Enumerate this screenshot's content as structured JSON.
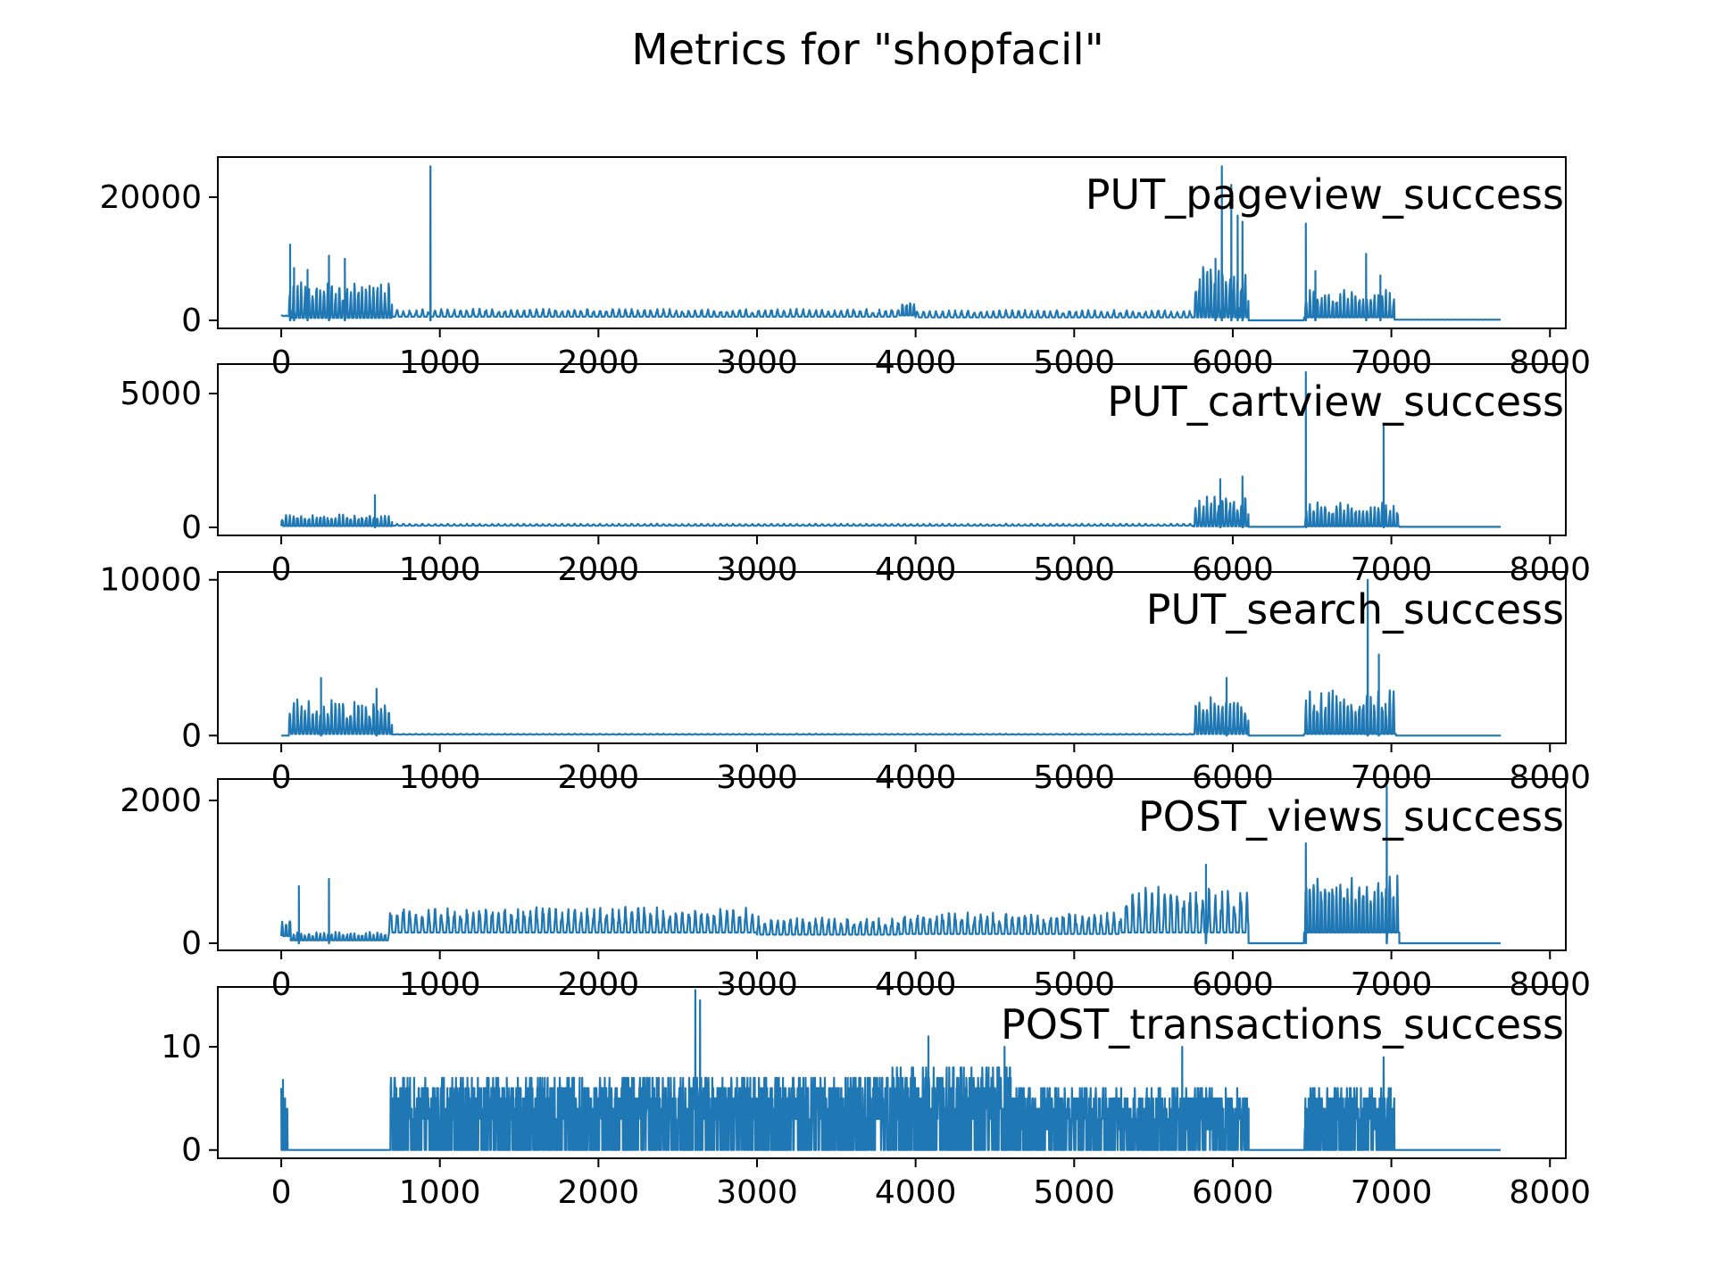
{
  "title": "Metrics for \"shopfacil\"",
  "line_color": "#1f77b4",
  "chart_data": [
    {
      "type": "line",
      "label": "PUT_pageview_success",
      "xlim": [
        -400,
        8100
      ],
      "ylim": [
        -1300,
        26500
      ],
      "xticks": [
        0,
        1000,
        2000,
        3000,
        4000,
        5000,
        6000,
        7000,
        8000
      ],
      "yticks": [
        0,
        20000
      ],
      "segments": [
        {
          "x0": 0,
          "x1": 50,
          "kind": "flat",
          "base": 700,
          "amp": 200,
          "period": 24
        },
        {
          "x0": 50,
          "x1": 700,
          "kind": "osc",
          "base": 400,
          "amp": 6000,
          "period": 24,
          "seed": 1
        },
        {
          "x0": 700,
          "x1": 3900,
          "kind": "osc",
          "base": 600,
          "amp": 1300,
          "period": 40,
          "seed": 2
        },
        {
          "x0": 3900,
          "x1": 4000,
          "kind": "osc",
          "base": 800,
          "amp": 2500,
          "period": 24,
          "seed": 3
        },
        {
          "x0": 4000,
          "x1": 5750,
          "kind": "osc",
          "base": 500,
          "amp": 1200,
          "period": 40,
          "seed": 4
        },
        {
          "x0": 5750,
          "x1": 6100,
          "kind": "osc",
          "base": 500,
          "amp": 9000,
          "period": 24,
          "seed": 5
        },
        {
          "x0": 6100,
          "x1": 6450,
          "kind": "flat",
          "base": 0,
          "amp": 0,
          "period": 24
        },
        {
          "x0": 6450,
          "x1": 7020,
          "kind": "osc",
          "base": 500,
          "amp": 4500,
          "period": 24,
          "seed": 6
        },
        {
          "x0": 7020,
          "x1": 7690,
          "kind": "flat",
          "base": 100,
          "amp": 50,
          "period": 24
        }
      ],
      "spikes": [
        [
          55,
          12300
        ],
        [
          80,
          8500
        ],
        [
          165,
          8200
        ],
        [
          300,
          10500
        ],
        [
          400,
          10000
        ],
        [
          940,
          25000
        ],
        [
          5890,
          10000
        ],
        [
          5930,
          25000
        ],
        [
          5990,
          22000
        ],
        [
          6030,
          17000
        ],
        [
          6060,
          16000
        ],
        [
          6460,
          15700
        ],
        [
          6520,
          8000
        ],
        [
          6840,
          10800
        ],
        [
          6930,
          7300
        ]
      ]
    },
    {
      "type": "line",
      "label": "PUT_cartview_success",
      "xlim": [
        -400,
        8100
      ],
      "ylim": [
        -300,
        6100
      ],
      "xticks": [
        0,
        1000,
        2000,
        3000,
        4000,
        5000,
        6000,
        7000,
        8000
      ],
      "yticks": [
        0,
        5000
      ],
      "segments": [
        {
          "x0": 0,
          "x1": 700,
          "kind": "osc",
          "base": 50,
          "amp": 450,
          "period": 24,
          "seed": 11
        },
        {
          "x0": 700,
          "x1": 5750,
          "kind": "osc",
          "base": 60,
          "amp": 80,
          "period": 40,
          "seed": 12
        },
        {
          "x0": 5750,
          "x1": 6100,
          "kind": "osc",
          "base": 40,
          "amp": 1200,
          "period": 24,
          "seed": 13
        },
        {
          "x0": 6100,
          "x1": 6450,
          "kind": "flat",
          "base": 20,
          "amp": 0,
          "period": 24
        },
        {
          "x0": 6450,
          "x1": 7050,
          "kind": "osc",
          "base": 40,
          "amp": 900,
          "period": 24,
          "seed": 14
        },
        {
          "x0": 7050,
          "x1": 7690,
          "kind": "flat",
          "base": 20,
          "amp": 0,
          "period": 24
        }
      ],
      "spikes": [
        [
          590,
          1200
        ],
        [
          5920,
          1800
        ],
        [
          6060,
          1900
        ],
        [
          6460,
          5800
        ],
        [
          6950,
          3800
        ]
      ]
    },
    {
      "type": "line",
      "label": "PUT_search_success",
      "xlim": [
        -400,
        8100
      ],
      "ylim": [
        -500,
        10500
      ],
      "xticks": [
        0,
        1000,
        2000,
        3000,
        4000,
        5000,
        6000,
        7000,
        8000
      ],
      "yticks": [
        0,
        10000
      ],
      "segments": [
        {
          "x0": 0,
          "x1": 50,
          "kind": "flat",
          "base": 0,
          "amp": 0,
          "period": 24
        },
        {
          "x0": 50,
          "x1": 700,
          "kind": "osc",
          "base": 100,
          "amp": 2300,
          "period": 24,
          "seed": 21
        },
        {
          "x0": 700,
          "x1": 5750,
          "kind": "osc",
          "base": 60,
          "amp": 60,
          "period": 40,
          "seed": 22
        },
        {
          "x0": 5750,
          "x1": 6100,
          "kind": "osc",
          "base": 100,
          "amp": 2500,
          "period": 24,
          "seed": 23
        },
        {
          "x0": 6100,
          "x1": 6450,
          "kind": "flat",
          "base": 0,
          "amp": 0,
          "period": 24
        },
        {
          "x0": 6450,
          "x1": 7030,
          "kind": "osc",
          "base": 100,
          "amp": 2800,
          "period": 24,
          "seed": 24
        },
        {
          "x0": 7030,
          "x1": 7690,
          "kind": "flat",
          "base": 0,
          "amp": 0,
          "period": 24
        }
      ],
      "spikes": [
        [
          250,
          3700
        ],
        [
          600,
          3000
        ],
        [
          5960,
          3700
        ],
        [
          6850,
          10000
        ],
        [
          6920,
          5200
        ]
      ]
    },
    {
      "type": "line",
      "label": "POST_views_success",
      "xlim": [
        -400,
        8100
      ],
      "ylim": [
        -100,
        2300
      ],
      "xticks": [
        0,
        1000,
        2000,
        3000,
        4000,
        5000,
        6000,
        7000,
        8000
      ],
      "yticks": [
        0,
        2000
      ],
      "segments": [
        {
          "x0": 0,
          "x1": 60,
          "kind": "osc",
          "base": 100,
          "amp": 300,
          "period": 24,
          "seed": 31
        },
        {
          "x0": 60,
          "x1": 680,
          "kind": "osc",
          "base": 40,
          "amp": 120,
          "period": 24,
          "seed": 32
        },
        {
          "x0": 680,
          "x1": 3000,
          "kind": "osc",
          "base": 150,
          "amp": 370,
          "period": 40,
          "seed": 33
        },
        {
          "x0": 3000,
          "x1": 3900,
          "kind": "osc",
          "base": 120,
          "amp": 260,
          "period": 40,
          "seed": 34
        },
        {
          "x0": 3900,
          "x1": 5300,
          "kind": "osc",
          "base": 130,
          "amp": 320,
          "period": 40,
          "seed": 35
        },
        {
          "x0": 5300,
          "x1": 6100,
          "kind": "osc",
          "base": 150,
          "amp": 650,
          "period": 40,
          "seed": 36
        },
        {
          "x0": 6100,
          "x1": 6450,
          "kind": "flat",
          "base": 0,
          "amp": 0,
          "period": 24
        },
        {
          "x0": 6450,
          "x1": 7050,
          "kind": "osc",
          "base": 150,
          "amp": 900,
          "period": 24,
          "seed": 37
        },
        {
          "x0": 7050,
          "x1": 7690,
          "kind": "flat",
          "base": 0,
          "amp": 0,
          "period": 24
        }
      ],
      "spikes": [
        [
          110,
          800
        ],
        [
          300,
          900
        ],
        [
          5830,
          1100
        ],
        [
          6460,
          1400
        ],
        [
          6970,
          2200
        ]
      ]
    },
    {
      "type": "line",
      "label": "POST_transactions_success",
      "xlim": [
        -400,
        8100
      ],
      "ylim": [
        -0.8,
        15.8
      ],
      "xticks": [
        0,
        1000,
        2000,
        3000,
        4000,
        5000,
        6000,
        7000,
        8000
      ],
      "yticks": [
        0,
        10
      ],
      "segments": [
        {
          "x0": 0,
          "x1": 40,
          "kind": "noise",
          "base": 0,
          "amp": 6,
          "period": 6,
          "seed": 41
        },
        {
          "x0": 40,
          "x1": 690,
          "kind": "flat",
          "base": 0,
          "amp": 0,
          "period": 6
        },
        {
          "x0": 690,
          "x1": 3850,
          "kind": "noise",
          "base": 0,
          "amp": 7,
          "period": 4,
          "seed": 42
        },
        {
          "x0": 3850,
          "x1": 4600,
          "kind": "noise",
          "base": 0,
          "amp": 8,
          "period": 4,
          "seed": 43
        },
        {
          "x0": 4600,
          "x1": 6100,
          "kind": "noise",
          "base": 0,
          "amp": 6,
          "period": 4,
          "seed": 44
        },
        {
          "x0": 6100,
          "x1": 6450,
          "kind": "flat",
          "base": 0,
          "amp": 0,
          "period": 6
        },
        {
          "x0": 6450,
          "x1": 7020,
          "kind": "noise",
          "base": 0,
          "amp": 6,
          "period": 4,
          "seed": 45
        },
        {
          "x0": 7020,
          "x1": 7690,
          "kind": "flat",
          "base": 0,
          "amp": 0,
          "period": 6
        }
      ],
      "spikes": [
        [
          10,
          6.8
        ],
        [
          35,
          3.5
        ],
        [
          2610,
          15.5
        ],
        [
          2640,
          14.5
        ],
        [
          4080,
          11
        ],
        [
          4560,
          10
        ],
        [
          5680,
          10
        ],
        [
          6950,
          9
        ]
      ]
    }
  ]
}
